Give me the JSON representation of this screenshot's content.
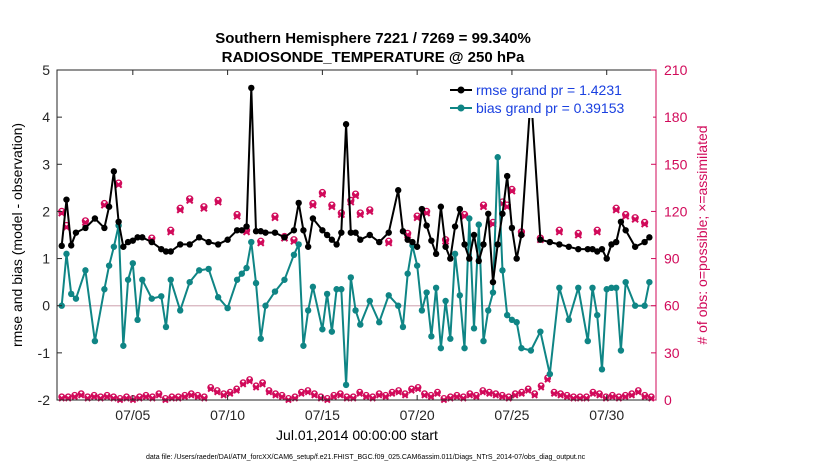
{
  "chart_data": {
    "type": "line",
    "title": "Southern Hemisphere 7221 / 7269 = 99.340%",
    "subtitle": "RADIOSONDE_TEMPERATURE @ 250 hPa",
    "xlabel": "Jul.01,2014 00:00:00 start",
    "ylabel": "rmse and bias (model - observation)",
    "y2label": "# of obs: o=possible; ×=assimilated",
    "xlim": [
      0.5,
      32.1
    ],
    "ylim": [
      -2,
      5
    ],
    "y2lim": [
      0,
      210
    ],
    "x_ticks": [
      4.5,
      9.5,
      14.5,
      19.5,
      24.5,
      29.5
    ],
    "x_tick_labels": [
      "07/05",
      "07/10",
      "07/15",
      "07/20",
      "07/25",
      "07/30"
    ],
    "y_ticks": [
      -2,
      -1,
      0,
      1,
      2,
      3,
      4,
      5
    ],
    "y_tick_labels": [
      "-2",
      "-1",
      "0",
      "1",
      "2",
      "3",
      "4",
      "5"
    ],
    "y2_ticks": [
      0,
      30,
      60,
      90,
      120,
      150,
      180,
      210
    ],
    "y2_tick_labels": [
      "0",
      "30",
      "60",
      "90",
      "120",
      "150",
      "180",
      "210"
    ],
    "footer": "data file: /Users/raeder/DAI/ATM_forcXX/CAM6_setup/f.e21.FHIST_BGC.f09_025.CAM6assim.011/Diags_NTrS_2014-07/obs_diag_output.nc",
    "legend": {
      "position": "top-right",
      "entries": [
        "rmse grand pr = 1.4231",
        "bias grand pr = 0.39153"
      ]
    },
    "series": [
      {
        "name": "rmse grand pr = 1.4231",
        "color": "#000000",
        "marker": "filled-circle",
        "x": [
          0.75,
          1.0,
          1.25,
          1.5,
          2.0,
          2.5,
          3.0,
          3.25,
          3.5,
          3.75,
          4.0,
          4.25,
          4.5,
          4.75,
          5.0,
          5.5,
          6.0,
          6.25,
          6.5,
          7.0,
          7.5,
          8.0,
          8.5,
          9.0,
          9.5,
          10.0,
          10.25,
          10.5,
          10.75,
          11.0,
          11.25,
          11.5,
          12.0,
          12.5,
          13.0,
          13.25,
          13.5,
          13.75,
          14.0,
          14.5,
          14.75,
          15.0,
          15.25,
          15.5,
          15.75,
          16.0,
          16.25,
          16.5,
          17.0,
          17.5,
          18.0,
          18.5,
          18.75,
          19.0,
          19.25,
          19.5,
          19.75,
          20.0,
          20.25,
          20.5,
          20.75,
          21.0,
          21.25,
          21.5,
          21.75,
          22.0,
          22.25,
          22.5,
          22.75,
          23.0,
          23.25,
          23.5,
          23.75,
          24.0,
          24.25,
          24.5,
          24.75,
          25.0,
          25.5,
          26.0,
          26.5,
          27.0,
          27.5,
          28.0,
          28.5,
          28.75,
          29.0,
          29.25,
          29.5,
          29.75,
          30.0,
          30.25,
          30.5,
          31.0,
          31.5,
          31.75
        ],
        "y": [
          1.27,
          2.25,
          1.28,
          1.55,
          1.65,
          1.85,
          1.65,
          2.1,
          2.85,
          1.78,
          1.25,
          1.35,
          1.38,
          1.45,
          1.45,
          1.35,
          1.2,
          1.15,
          1.15,
          1.3,
          1.3,
          1.45,
          1.35,
          1.3,
          1.4,
          1.6,
          1.6,
          1.68,
          4.62,
          1.58,
          1.58,
          1.55,
          1.55,
          1.45,
          1.6,
          2.18,
          1.6,
          1.25,
          1.85,
          1.6,
          1.5,
          1.4,
          1.3,
          1.55,
          3.85,
          1.55,
          1.55,
          1.4,
          1.5,
          1.35,
          1.55,
          2.45,
          1.58,
          1.4,
          1.35,
          1.25,
          2.05,
          1.7,
          1.38,
          1.1,
          2.1,
          1.25,
          1.0,
          1.68,
          2.05,
          1.3,
          1.0,
          1.5,
          0.95,
          1.3,
          1.95,
          0.5,
          1.3,
          1.95,
          2.75,
          1.65,
          1.0,
          1.5,
          4.5,
          1.4,
          1.35,
          1.3,
          1.25,
          1.2,
          1.2,
          1.2,
          1.15,
          1.2,
          1.0,
          1.3,
          1.35,
          1.78,
          1.6,
          1.25,
          1.35,
          1.45
        ]
      },
      {
        "name": "bias grand pr = 0.39153",
        "color": "#0f8585",
        "marker": "filled-circle",
        "x": [
          0.75,
          1.0,
          1.25,
          1.5,
          2.0,
          2.5,
          3.0,
          3.25,
          3.5,
          3.75,
          4.0,
          4.25,
          4.5,
          4.75,
          5.0,
          5.5,
          6.0,
          6.25,
          6.5,
          7.0,
          7.5,
          8.0,
          8.5,
          9.0,
          9.5,
          10.0,
          10.25,
          10.5,
          10.75,
          11.0,
          11.25,
          11.5,
          12.0,
          12.5,
          13.0,
          13.25,
          13.5,
          13.75,
          14.0,
          14.5,
          14.75,
          15.0,
          15.25,
          15.5,
          15.75,
          16.0,
          16.25,
          16.5,
          17.0,
          17.5,
          18.0,
          18.5,
          18.75,
          19.0,
          19.25,
          19.5,
          19.75,
          20.0,
          20.25,
          20.5,
          20.75,
          21.0,
          21.25,
          21.5,
          21.75,
          22.0,
          22.25,
          22.5,
          22.75,
          23.0,
          23.25,
          23.5,
          23.75,
          24.0,
          24.25,
          24.5,
          24.75,
          25.0,
          25.5,
          26.0,
          26.5,
          27.0,
          27.5,
          28.0,
          28.5,
          28.75,
          29.0,
          29.25,
          29.5,
          29.75,
          30.0,
          30.25,
          30.5,
          31.0,
          31.5,
          31.75
        ],
        "y": [
          0.0,
          1.1,
          0.25,
          0.15,
          0.75,
          -0.75,
          0.35,
          0.85,
          1.25,
          1.7,
          -0.85,
          0.55,
          0.9,
          -0.3,
          0.55,
          0.15,
          0.2,
          -0.45,
          0.55,
          -0.1,
          0.5,
          0.75,
          0.78,
          0.18,
          -0.05,
          0.55,
          0.68,
          0.8,
          1.35,
          0.48,
          -0.7,
          0.0,
          0.3,
          0.55,
          1.08,
          1.3,
          -0.85,
          -0.1,
          0.4,
          -0.5,
          0.25,
          -0.55,
          0.35,
          0.35,
          -1.68,
          0.6,
          -0.1,
          -0.4,
          0.1,
          -0.35,
          0.22,
          0.0,
          -0.45,
          0.68,
          1.28,
          0.85,
          -0.1,
          0.28,
          -0.65,
          0.38,
          -0.9,
          0.1,
          -0.7,
          1.1,
          0.22,
          -0.9,
          1.85,
          -0.48,
          1.72,
          -0.75,
          -0.1,
          0.28,
          3.15,
          0.75,
          -0.2,
          -0.3,
          -0.35,
          -0.9,
          -0.95,
          -0.55,
          -1.45,
          0.38,
          -0.3,
          0.38,
          -0.75,
          0.38,
          -0.2,
          -1.35,
          0.35,
          0.38,
          0.38,
          -0.95,
          0.5,
          0.0,
          0.0,
          0.5
        ]
      },
      {
        "name": "# obs possible",
        "axis": "right",
        "color": "#d10a5a",
        "marker": "open-circle",
        "x": [
          0.75,
          1.0,
          2.0,
          3.0,
          3.75,
          5.5,
          6.5,
          7.0,
          7.5,
          8.25,
          9.0,
          10.0,
          10.5,
          11.25,
          12.0,
          12.5,
          13.0,
          14.0,
          14.5,
          15.0,
          15.5,
          16.0,
          16.25,
          16.5,
          17.0,
          18.0,
          19.0,
          19.5,
          20.0,
          21.0,
          22.0,
          23.0,
          23.5,
          24.0,
          24.25,
          24.5,
          25.0,
          26.0,
          27.0,
          28.0,
          29.0,
          30.0,
          30.5,
          31.0,
          31.5
        ],
        "y": [
          120,
          111,
          114,
          125,
          138,
          103,
          108,
          122,
          128,
          123,
          127,
          118,
          108,
          101,
          117,
          104,
          102,
          125,
          132,
          124,
          119,
          127,
          131,
          119,
          121,
          101,
          106,
          117,
          120,
          102,
          118,
          124,
          113,
          126,
          124,
          134,
          107,
          103,
          108,
          106,
          108,
          122,
          118,
          116,
          113
        ],
        "y_assim": [
          119,
          110,
          113,
          124,
          137,
          102,
          107,
          121,
          127,
          122,
          126,
          117,
          107,
          100,
          116,
          103,
          101,
          124,
          131,
          123,
          118,
          126,
          130,
          118,
          120,
          100,
          105,
          116,
          119,
          101,
          117,
          123,
          112,
          125,
          123,
          133,
          106,
          102,
          107,
          105,
          107,
          121,
          117,
          115,
          112
        ]
      }
    ],
    "obs_counts_low": {
      "axis": "right",
      "possible": [
        2,
        2,
        3,
        4,
        2,
        3,
        2,
        3,
        2,
        1,
        2,
        1,
        2,
        3,
        2,
        4,
        1,
        2,
        2,
        3,
        4,
        3,
        2,
        8,
        6,
        4,
        5,
        7,
        11,
        13,
        9,
        11,
        6,
        4,
        3,
        1,
        2,
        5,
        6,
        4,
        2,
        1,
        3,
        4,
        2,
        2,
        5,
        3,
        2,
        4,
        3,
        5,
        6,
        4,
        7,
        8,
        4,
        3,
        5,
        1,
        2,
        3,
        2,
        4,
        3,
        6,
        5,
        4,
        3,
        2,
        4,
        5,
        7,
        4,
        9,
        14,
        5,
        4,
        3,
        2,
        2,
        2,
        5,
        4,
        2,
        3,
        2,
        3,
        4,
        6,
        3,
        2
      ],
      "assimilated": [
        1,
        1,
        2,
        3,
        1,
        2,
        1,
        2,
        1,
        0,
        1,
        0,
        1,
        2,
        1,
        3,
        0,
        1,
        1,
        2,
        3,
        2,
        1,
        7,
        5,
        3,
        4,
        6,
        10,
        12,
        8,
        10,
        5,
        3,
        2,
        0,
        1,
        4,
        5,
        3,
        1,
        0,
        2,
        3,
        1,
        1,
        4,
        2,
        1,
        3,
        2,
        4,
        5,
        3,
        6,
        7,
        3,
        2,
        4,
        0,
        1,
        2,
        1,
        3,
        2,
        5,
        4,
        3,
        2,
        1,
        3,
        4,
        6,
        3,
        8,
        13,
        4,
        3,
        2,
        1,
        1,
        1,
        4,
        3,
        1,
        2,
        1,
        2,
        3,
        5,
        2,
        1
      ]
    },
    "grid": false,
    "reference_line": {
      "y": 0,
      "color": "#d6b3bd"
    }
  }
}
